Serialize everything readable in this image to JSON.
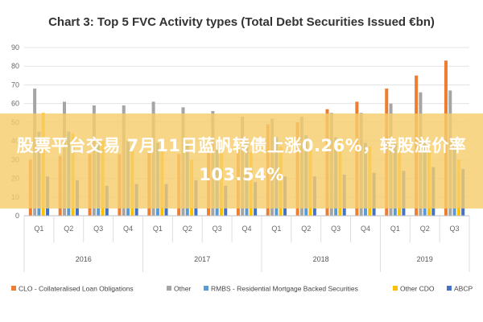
{
  "chart_data": {
    "type": "bar",
    "title": "Chart 3: Top 5 FVC Activity types (Total Debt Securities Issued €bn)",
    "xlabel": "",
    "ylabel": "",
    "ylim": [
      0,
      90
    ],
    "yticks": [
      0,
      10,
      20,
      30,
      40,
      50,
      60,
      70,
      80,
      90
    ],
    "grid": true,
    "legend_position": "bottom",
    "categories": [
      "Q1",
      "Q2",
      "Q3",
      "Q4",
      "Q1",
      "Q2",
      "Q3",
      "Q4",
      "Q1",
      "Q2",
      "Q3",
      "Q4",
      "Q1",
      "Q2",
      "Q3"
    ],
    "years": [
      {
        "label": "2016",
        "count": 4
      },
      {
        "label": "2017",
        "count": 4
      },
      {
        "label": "2018",
        "count": 4
      },
      {
        "label": "2019",
        "count": 3
      }
    ],
    "series": [
      {
        "name": "CLO - Collateralised Loan Obligations",
        "color": "#ed7d31",
        "values": [
          30,
          32,
          33,
          33,
          34,
          33,
          34,
          36,
          49,
          50,
          57,
          61,
          68,
          75,
          83
        ]
      },
      {
        "name": "Other",
        "color": "#a5a5a5",
        "values": [
          68,
          61,
          59,
          59,
          61,
          58,
          56,
          53,
          52,
          53,
          55,
          55,
          60,
          66,
          67
        ]
      },
      {
        "name": "RMBS - Residential Mortgage Backed Securities",
        "color": "#5b9bd5",
        "values": [
          45,
          45,
          40,
          40,
          39,
          39,
          39,
          40,
          42,
          43,
          42,
          39,
          39,
          39,
          40
        ]
      },
      {
        "name": "Other CDO",
        "color": "#ffc000",
        "values": [
          55,
          44,
          40,
          35,
          35,
          30,
          34,
          34,
          37,
          40,
          40,
          37,
          36,
          36,
          30
        ]
      },
      {
        "name": "ABCP",
        "color": "#4472c4",
        "values": [
          21,
          19,
          16,
          17,
          17,
          19,
          16,
          18,
          21,
          21,
          22,
          23,
          24,
          26,
          25
        ]
      }
    ]
  },
  "overlay": {
    "text": "股票平台交易 7月11日蓝帆转债上涨0.26%，转股溢价率103.54%"
  }
}
